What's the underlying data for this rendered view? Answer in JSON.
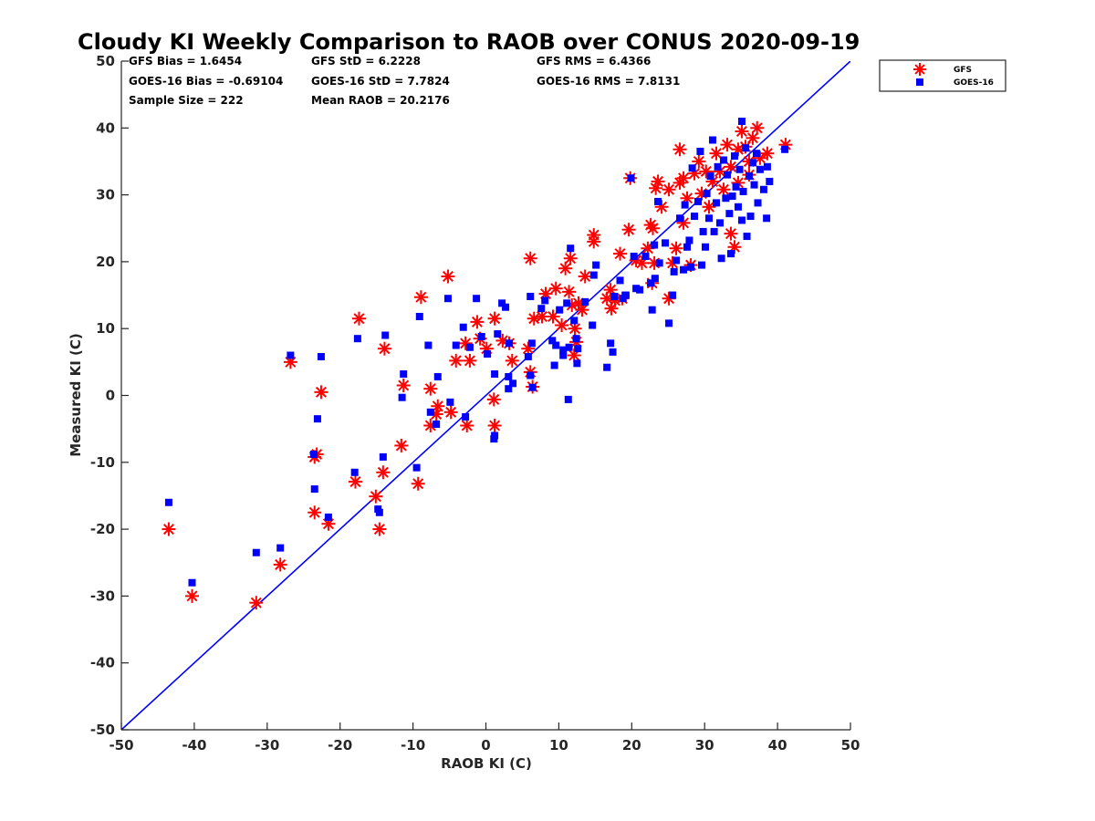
{
  "chart_data": {
    "type": "scatter",
    "title": "Cloudy KI Weekly Comparison to RAOB over CONUS 2020-09-19",
    "xlabel": "RAOB KI (C)",
    "ylabel": "Measured KI (C)",
    "xlim": [
      -50,
      50
    ],
    "ylim": [
      -50,
      50
    ],
    "xticks": [
      "-50",
      "-40",
      "-30",
      "-20",
      "-10",
      "0",
      "10",
      "20",
      "30",
      "40",
      "50"
    ],
    "yticks": [
      "-50",
      "-40",
      "-30",
      "-20",
      "-10",
      "0",
      "10",
      "20",
      "30",
      "40",
      "50"
    ],
    "grid": false,
    "legend_position": "top-right, outside plot",
    "stats": [
      [
        "GFS Bias = 1.6454",
        "GFS StD = 6.2228",
        "GFS RMS = 6.4366"
      ],
      [
        "GOES-16 Bias = -0.69104",
        "GOES-16 StD = 7.7824",
        "GOES-16 RMS = 7.8131"
      ],
      [
        "Sample Size = 222",
        "Mean RAOB = 20.2176"
      ]
    ],
    "reference_line": {
      "x": [
        -50,
        50
      ],
      "y": [
        -50,
        50
      ],
      "color": "#0000ff"
    },
    "series": [
      {
        "name": "GFS",
        "marker": "asterisk",
        "color": "#ff0000",
        "points": [
          [
            -43.5,
            -20
          ],
          [
            -40.3,
            -30
          ],
          [
            -31.5,
            -31
          ],
          [
            -28.2,
            -25.3
          ],
          [
            -26.8,
            5
          ],
          [
            -23.5,
            -9.2
          ],
          [
            -23.2,
            -8.8
          ],
          [
            -23.5,
            -17.5
          ],
          [
            -22.6,
            0.5
          ],
          [
            -21.6,
            -19.2
          ],
          [
            -17.9,
            -12.9
          ],
          [
            -17.4,
            11.5
          ],
          [
            -15.1,
            -15.1
          ],
          [
            -14.6,
            -20
          ],
          [
            -14.1,
            -11.5
          ],
          [
            -13.9,
            7
          ],
          [
            -11.6,
            -7.5
          ],
          [
            -11.3,
            1.5
          ],
          [
            -9.3,
            -13.2
          ],
          [
            -8.9,
            14.7
          ],
          [
            -7.6,
            1
          ],
          [
            -7.6,
            -4.5
          ],
          [
            -6.6,
            -1.6
          ],
          [
            -6.8,
            -2.8
          ],
          [
            -5.2,
            17.8
          ],
          [
            -4.8,
            -2.5
          ],
          [
            -4.1,
            5.2
          ],
          [
            -2.8,
            7.8
          ],
          [
            -2.6,
            -4.5
          ],
          [
            -2.2,
            5.2
          ],
          [
            -1.2,
            11
          ],
          [
            -0.8,
            8.5
          ],
          [
            0.1,
            7
          ],
          [
            1.2,
            11.5
          ],
          [
            1.1,
            -0.6
          ],
          [
            1.2,
            -4.5
          ],
          [
            2.3,
            8.2
          ],
          [
            3.2,
            7.8
          ],
          [
            3.6,
            5.2
          ],
          [
            5.8,
            7
          ],
          [
            6.1,
            3.5
          ],
          [
            6.4,
            1.3
          ],
          [
            6.1,
            20.5
          ],
          [
            6.6,
            11.5
          ],
          [
            7.7,
            11.8
          ],
          [
            8.2,
            15.2
          ],
          [
            9.2,
            11.8
          ],
          [
            9.6,
            16
          ],
          [
            10.4,
            10.5
          ],
          [
            10.9,
            19
          ],
          [
            11.4,
            15.5
          ],
          [
            11.6,
            20.5
          ],
          [
            11.8,
            13.5
          ],
          [
            12.2,
            10
          ],
          [
            12.4,
            8
          ],
          [
            12.1,
            6
          ],
          [
            12.7,
            13.8
          ],
          [
            13.6,
            17.8
          ],
          [
            13.2,
            12.8
          ],
          [
            14.8,
            23
          ],
          [
            14.8,
            24
          ],
          [
            16.6,
            14.5
          ],
          [
            17.1,
            15.8
          ],
          [
            17.2,
            13
          ],
          [
            17.7,
            14.2
          ],
          [
            18.4,
            21.2
          ],
          [
            18.7,
            14.5
          ],
          [
            19.6,
            24.8
          ],
          [
            19.8,
            32.5
          ],
          [
            20.6,
            20.2
          ],
          [
            21.4,
            19.8
          ],
          [
            22.2,
            22
          ],
          [
            22.6,
            25.5
          ],
          [
            22.8,
            16.8
          ],
          [
            22.9,
            25
          ],
          [
            23.1,
            19.8
          ],
          [
            23.3,
            31
          ],
          [
            23.6,
            32
          ],
          [
            24.1,
            28.2
          ],
          [
            25.1,
            30.8
          ],
          [
            25.1,
            14.5
          ],
          [
            25.6,
            19.8
          ],
          [
            26.1,
            22
          ],
          [
            26.6,
            36.8
          ],
          [
            26.6,
            31.8
          ],
          [
            27.1,
            32.5
          ],
          [
            27.1,
            25.8
          ],
          [
            27.6,
            29.5
          ],
          [
            28.1,
            19.5
          ],
          [
            28.6,
            33.2
          ],
          [
            29.2,
            35
          ],
          [
            29.6,
            30.2
          ],
          [
            30.2,
            33.5
          ],
          [
            30.6,
            28.2
          ],
          [
            31.1,
            32
          ],
          [
            31.6,
            36.2
          ],
          [
            32.1,
            33.5
          ],
          [
            32.6,
            30.8
          ],
          [
            33.1,
            37.5
          ],
          [
            33.6,
            34.2
          ],
          [
            34.1,
            22.2
          ],
          [
            34.6,
            36.8
          ],
          [
            35.1,
            39.5
          ],
          [
            35.6,
            37.2
          ],
          [
            36.1,
            35
          ],
          [
            36.6,
            38.5
          ],
          [
            36.1,
            33
          ],
          [
            37.2,
            40
          ],
          [
            37.6,
            35.5
          ],
          [
            38.6,
            36.2
          ],
          [
            41.1,
            37.5
          ],
          [
            33.6,
            24.2
          ],
          [
            34.6,
            31.8
          ]
        ]
      },
      {
        "name": "GOES-16",
        "marker": "square",
        "color": "#0000ff",
        "points": [
          [
            -43.5,
            -16
          ],
          [
            -40.3,
            -28
          ],
          [
            -31.5,
            -23.5
          ],
          [
            -28.2,
            -22.8
          ],
          [
            -26.8,
            6
          ],
          [
            -23.6,
            -8.8
          ],
          [
            -23.5,
            -14
          ],
          [
            -23.1,
            -3.5
          ],
          [
            -22.6,
            5.8
          ],
          [
            -21.6,
            -18.2
          ],
          [
            -18,
            -11.5
          ],
          [
            -17.6,
            8.5
          ],
          [
            -14.8,
            -17
          ],
          [
            -14.6,
            -17.5
          ],
          [
            -14.1,
            -9.2
          ],
          [
            -13.8,
            9
          ],
          [
            -11.5,
            -0.3
          ],
          [
            -11.3,
            3.2
          ],
          [
            -9.5,
            -10.8
          ],
          [
            -9.1,
            11.8
          ],
          [
            -7.9,
            7.5
          ],
          [
            -7.6,
            -2.5
          ],
          [
            -6.8,
            -4.3
          ],
          [
            -6.6,
            2.8
          ],
          [
            -5.2,
            14.5
          ],
          [
            -4.9,
            -1
          ],
          [
            -4.1,
            7.5
          ],
          [
            -3.1,
            10.2
          ],
          [
            -2.8,
            -3.2
          ],
          [
            -2.2,
            7.2
          ],
          [
            -1.3,
            14.5
          ],
          [
            -0.6,
            8.8
          ],
          [
            0.2,
            6.2
          ],
          [
            1.1,
            -6.5
          ],
          [
            1.2,
            -6
          ],
          [
            1.2,
            3.2
          ],
          [
            1.6,
            9.2
          ],
          [
            2.2,
            13.8
          ],
          [
            2.7,
            13.2
          ],
          [
            3.1,
            2.8
          ],
          [
            3.2,
            7.8
          ],
          [
            3.1,
            1
          ],
          [
            3.7,
            1.8
          ],
          [
            5.8,
            5.8
          ],
          [
            6.1,
            14.8
          ],
          [
            6.3,
            7.8
          ],
          [
            6.4,
            1.2
          ],
          [
            6.1,
            3
          ],
          [
            7.6,
            13
          ],
          [
            8.1,
            14.2
          ],
          [
            9.1,
            8.2
          ],
          [
            9.4,
            4.5
          ],
          [
            9.6,
            7.5
          ],
          [
            10.1,
            12.8
          ],
          [
            10.6,
            6.8
          ],
          [
            10.6,
            6
          ],
          [
            11.1,
            13.8
          ],
          [
            11.4,
            7.2
          ],
          [
            11.6,
            22
          ],
          [
            11.3,
            -0.6
          ],
          [
            12.1,
            11.2
          ],
          [
            12.4,
            8.5
          ],
          [
            12.5,
            4.8
          ],
          [
            12.6,
            7
          ],
          [
            13.6,
            14
          ],
          [
            14.6,
            10.5
          ],
          [
            14.8,
            18
          ],
          [
            15.1,
            19.5
          ],
          [
            16.6,
            4.2
          ],
          [
            17.1,
            7.8
          ],
          [
            17.4,
            6.5
          ],
          [
            17.6,
            14.8
          ],
          [
            18.4,
            17.2
          ],
          [
            18.8,
            14.5
          ],
          [
            19.2,
            15
          ],
          [
            19.9,
            32.5
          ],
          [
            20.3,
            20.8
          ],
          [
            20.6,
            16
          ],
          [
            21.1,
            15.8
          ],
          [
            21.9,
            20.8
          ],
          [
            22.6,
            16.8
          ],
          [
            22.8,
            12.8
          ],
          [
            23.1,
            22.5
          ],
          [
            23.2,
            17.5
          ],
          [
            23.6,
            29
          ],
          [
            23.8,
            19.8
          ],
          [
            24.6,
            22.8
          ],
          [
            25.1,
            10.8
          ],
          [
            25.6,
            15
          ],
          [
            25.8,
            18.5
          ],
          [
            26.1,
            20.2
          ],
          [
            26.6,
            26.5
          ],
          [
            27.1,
            18.8
          ],
          [
            27.3,
            28.5
          ],
          [
            27.6,
            22.2
          ],
          [
            27.9,
            23.2
          ],
          [
            28.1,
            19.2
          ],
          [
            28.3,
            34
          ],
          [
            28.6,
            26.8
          ],
          [
            29.1,
            29
          ],
          [
            29.4,
            36.5
          ],
          [
            29.6,
            19.5
          ],
          [
            29.8,
            24.5
          ],
          [
            30.1,
            22.2
          ],
          [
            30.3,
            30.2
          ],
          [
            30.6,
            26.5
          ],
          [
            30.8,
            32.8
          ],
          [
            31.1,
            38.2
          ],
          [
            31.3,
            24.5
          ],
          [
            31.6,
            28.8
          ],
          [
            31.8,
            34.2
          ],
          [
            32.1,
            25.8
          ],
          [
            32.3,
            20.5
          ],
          [
            32.6,
            35.2
          ],
          [
            32.9,
            29.5
          ],
          [
            33.1,
            33
          ],
          [
            33.4,
            27.2
          ],
          [
            33.6,
            21.2
          ],
          [
            33.8,
            29.8
          ],
          [
            34.1,
            35.8
          ],
          [
            34.3,
            31.2
          ],
          [
            34.6,
            28.2
          ],
          [
            34.8,
            33.8
          ],
          [
            35.1,
            41
          ],
          [
            35.1,
            26.2
          ],
          [
            35.3,
            30.5
          ],
          [
            35.6,
            37
          ],
          [
            35.8,
            23.8
          ],
          [
            36.1,
            32.8
          ],
          [
            36.3,
            26.8
          ],
          [
            36.6,
            34.8
          ],
          [
            36.8,
            31.5
          ],
          [
            37.1,
            36.2
          ],
          [
            37.3,
            28.8
          ],
          [
            37.6,
            33.8
          ],
          [
            38.1,
            30.8
          ],
          [
            38.5,
            26.5
          ],
          [
            38.6,
            34.2
          ],
          [
            38.9,
            32
          ],
          [
            41,
            36.8
          ]
        ]
      }
    ]
  }
}
